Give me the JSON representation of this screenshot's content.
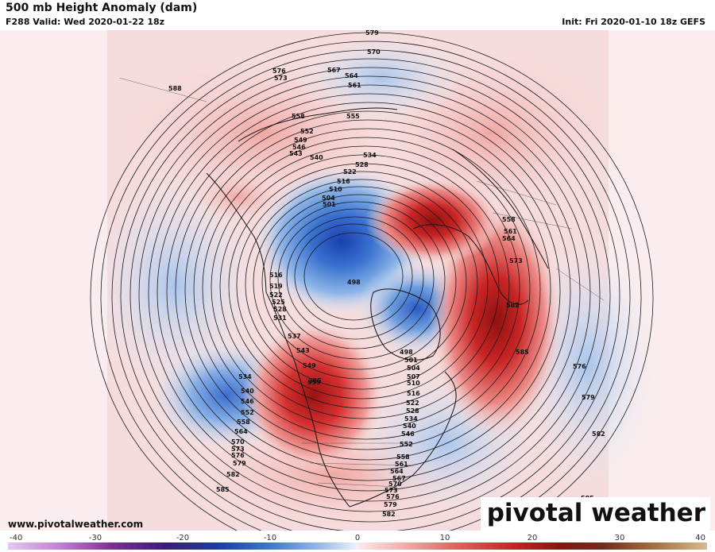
{
  "header": {
    "title": "500 mb Height Anomaly (dam)",
    "valid": "F288 Valid: Wed 2020-01-22 18z",
    "init": "Init: Fri 2020-01-10 18z GEFS"
  },
  "footer": {
    "url": "www.pivotalweather.com",
    "brand": "pivotal weather"
  },
  "colorbar": {
    "ticks": [
      -40,
      -30,
      -20,
      -10,
      0,
      10,
      20,
      30,
      40
    ],
    "range": [
      -40,
      40
    ],
    "negative_colors": [
      "#d9b6e8",
      "#b56fcc",
      "#7a2f8f",
      "#3b1f7a",
      "#1f3fae",
      "#3b74d1",
      "#7ea9e3",
      "#c4d8f1"
    ],
    "positive_colors": [
      "#f8d9d9",
      "#f1a9a6",
      "#e46a64",
      "#cc2a2a",
      "#9c1414",
      "#7a3a1e",
      "#a0693a",
      "#c9a074"
    ]
  },
  "map": {
    "height_contour_labels": [
      "579",
      "570",
      "567",
      "564",
      "561",
      "576",
      "573",
      "588",
      "558",
      "555",
      "552",
      "549",
      "546",
      "543",
      "540",
      "534",
      "528",
      "522",
      "516",
      "510",
      "504",
      "501",
      "498",
      "558",
      "561",
      "564",
      "573",
      "582",
      "585",
      "576",
      "579",
      "582",
      "585",
      "516",
      "519",
      "522",
      "525",
      "528",
      "531",
      "537",
      "543",
      "549",
      "555",
      "534",
      "540",
      "546",
      "552",
      "558",
      "564",
      "570",
      "573",
      "576",
      "579",
      "582",
      "585",
      "498",
      "501",
      "504",
      "507",
      "510",
      "516",
      "522",
      "528",
      "534",
      "540",
      "546",
      "552",
      "558",
      "561",
      "564",
      "567",
      "570",
      "573",
      "576",
      "579",
      "582",
      "585"
    ],
    "anomaly_features": [
      {
        "kind": "negative",
        "label": "498"
      },
      {
        "kind": "positive",
        "label": "582"
      },
      {
        "kind": "positive",
        "label": "555"
      },
      {
        "kind": "negative",
        "label": "540"
      }
    ]
  }
}
